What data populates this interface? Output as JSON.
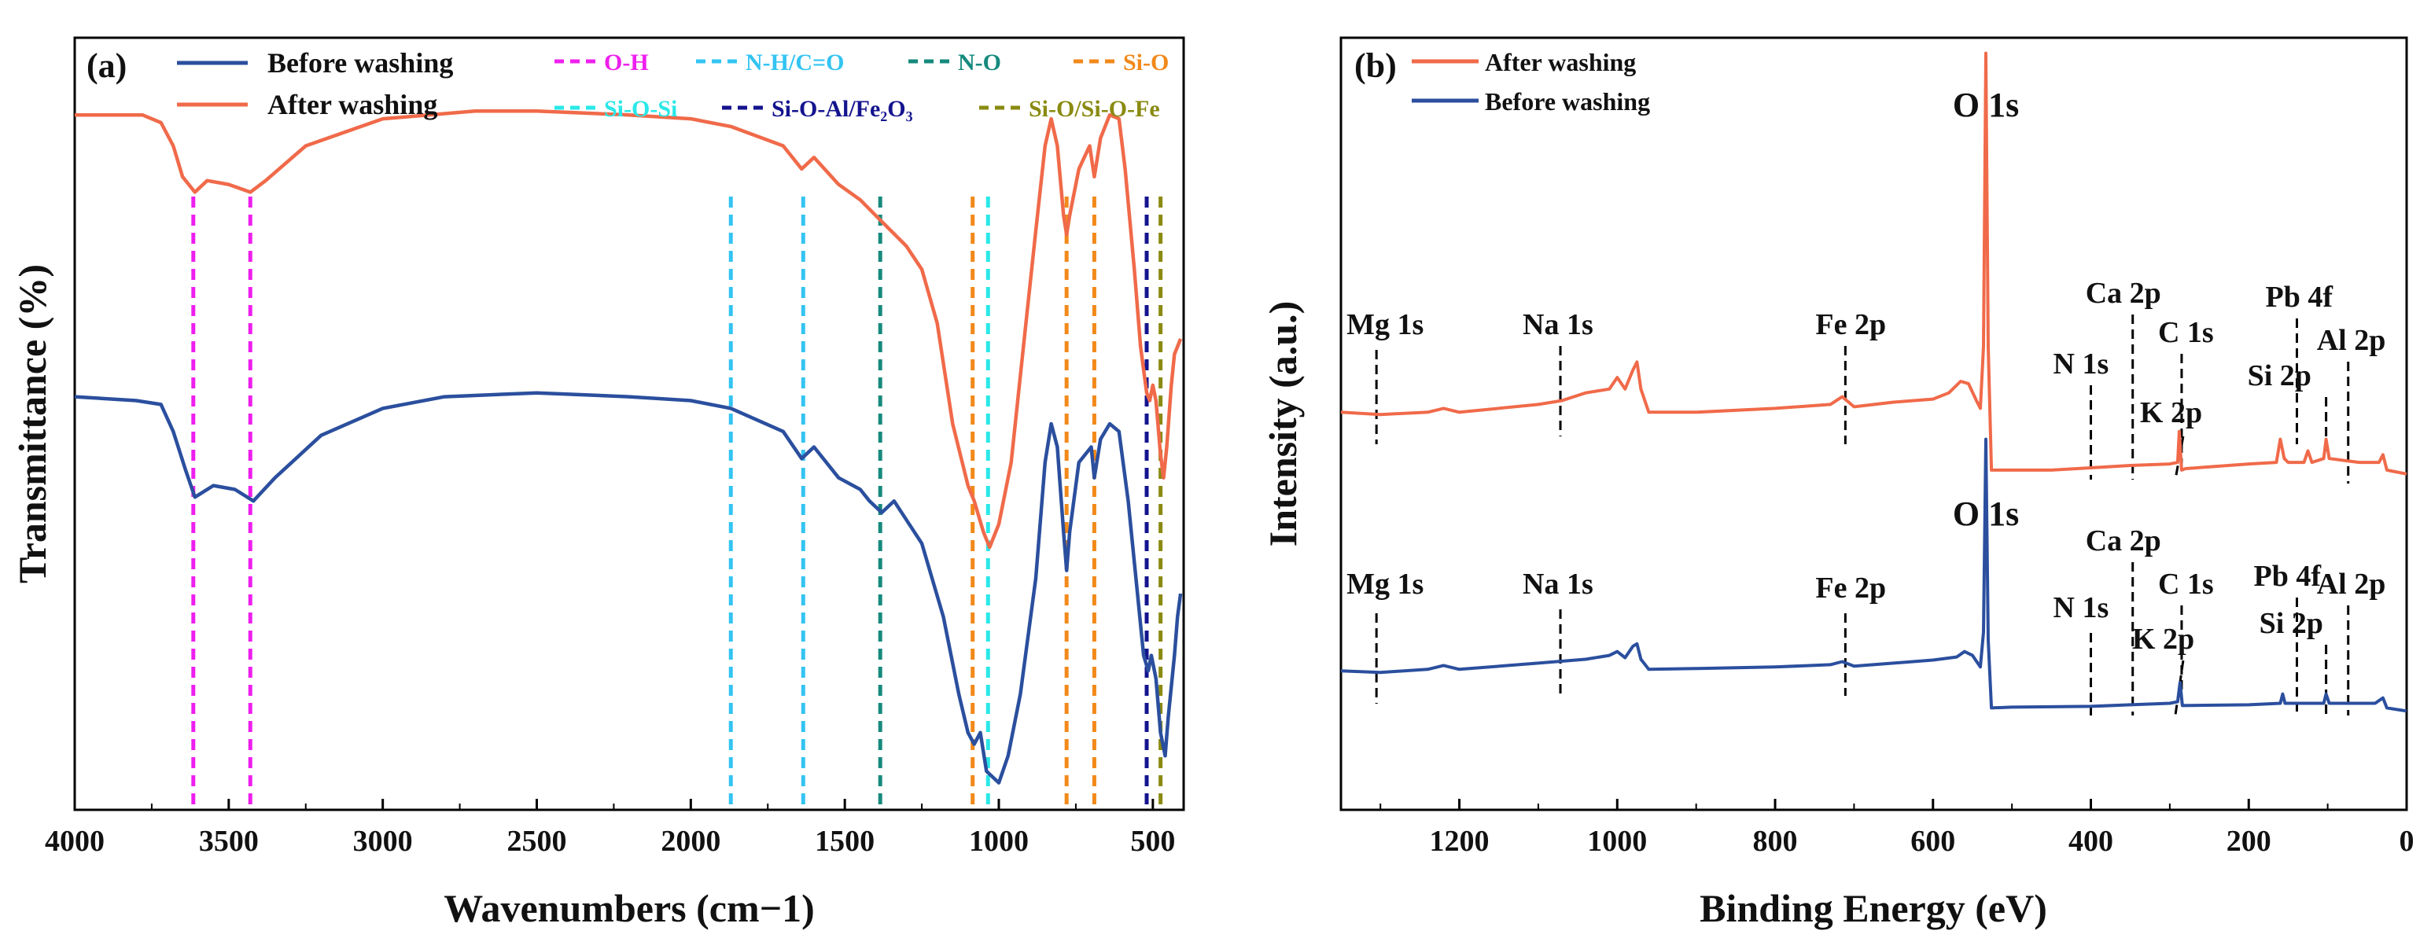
{
  "chart_data": [
    {
      "panel": "(a)",
      "type": "line",
      "xlabel": "Wavenumbers  (cm−1)",
      "ylabel": "Transmittance (%)",
      "xlim": [
        4000,
        400
      ],
      "ylim": [
        0,
        1
      ],
      "x_ticks": [
        "4000",
        "3500",
        "3000",
        "2500",
        "2000",
        "1500",
        "1000",
        "500"
      ],
      "grid": false,
      "legend": "top-left",
      "series": [
        {
          "name": "Before washing",
          "color": "#2b4f9e",
          "points": [
            [
              4000,
              0.535
            ],
            [
              3800,
              0.53
            ],
            [
              3720,
              0.525
            ],
            [
              3680,
              0.49
            ],
            [
              3640,
              0.44
            ],
            [
              3610,
              0.405
            ],
            [
              3550,
              0.42
            ],
            [
              3480,
              0.415
            ],
            [
              3420,
              0.4
            ],
            [
              3350,
              0.43
            ],
            [
              3200,
              0.485
            ],
            [
              3000,
              0.52
            ],
            [
              2800,
              0.535
            ],
            [
              2500,
              0.54
            ],
            [
              2200,
              0.535
            ],
            [
              2000,
              0.53
            ],
            [
              1870,
              0.52
            ],
            [
              1700,
              0.49
            ],
            [
              1640,
              0.455
            ],
            [
              1600,
              0.47
            ],
            [
              1520,
              0.43
            ],
            [
              1450,
              0.415
            ],
            [
              1420,
              0.4
            ],
            [
              1380,
              0.385
            ],
            [
              1340,
              0.4
            ],
            [
              1250,
              0.345
            ],
            [
              1180,
              0.25
            ],
            [
              1130,
              0.15
            ],
            [
              1100,
              0.1
            ],
            [
              1080,
              0.085
            ],
            [
              1060,
              0.1
            ],
            [
              1040,
              0.05
            ],
            [
              1000,
              0.035
            ],
            [
              970,
              0.07
            ],
            [
              930,
              0.15
            ],
            [
              880,
              0.3
            ],
            [
              850,
              0.45
            ],
            [
              830,
              0.5
            ],
            [
              810,
              0.47
            ],
            [
              790,
              0.36
            ],
            [
              780,
              0.31
            ],
            [
              770,
              0.36
            ],
            [
              740,
              0.45
            ],
            [
              700,
              0.47
            ],
            [
              690,
              0.43
            ],
            [
              670,
              0.48
            ],
            [
              640,
              0.5
            ],
            [
              610,
              0.49
            ],
            [
              580,
              0.4
            ],
            [
              550,
              0.28
            ],
            [
              530,
              0.2
            ],
            [
              515,
              0.18
            ],
            [
              505,
              0.2
            ],
            [
              490,
              0.17
            ],
            [
              475,
              0.1
            ],
            [
              460,
              0.07
            ],
            [
              450,
              0.12
            ],
            [
              430,
              0.2
            ],
            [
              420,
              0.25
            ],
            [
              410,
              0.28
            ]
          ]
        },
        {
          "name": "After washing",
          "color": "#f06a4a",
          "points": [
            [
              4000,
              0.9
            ],
            [
              3780,
              0.9
            ],
            [
              3720,
              0.89
            ],
            [
              3680,
              0.86
            ],
            [
              3650,
              0.82
            ],
            [
              3610,
              0.8
            ],
            [
              3570,
              0.815
            ],
            [
              3500,
              0.81
            ],
            [
              3430,
              0.8
            ],
            [
              3380,
              0.815
            ],
            [
              3250,
              0.86
            ],
            [
              3000,
              0.895
            ],
            [
              2700,
              0.905
            ],
            [
              2500,
              0.905
            ],
            [
              2200,
              0.9
            ],
            [
              2000,
              0.895
            ],
            [
              1870,
              0.885
            ],
            [
              1700,
              0.86
            ],
            [
              1640,
              0.83
            ],
            [
              1600,
              0.845
            ],
            [
              1520,
              0.81
            ],
            [
              1450,
              0.79
            ],
            [
              1400,
              0.77
            ],
            [
              1300,
              0.73
            ],
            [
              1250,
              0.7
            ],
            [
              1200,
              0.63
            ],
            [
              1150,
              0.5
            ],
            [
              1100,
              0.42
            ],
            [
              1080,
              0.4
            ],
            [
              1050,
              0.36
            ],
            [
              1030,
              0.34
            ],
            [
              1000,
              0.37
            ],
            [
              960,
              0.45
            ],
            [
              920,
              0.6
            ],
            [
              880,
              0.75
            ],
            [
              850,
              0.86
            ],
            [
              830,
              0.895
            ],
            [
              810,
              0.86
            ],
            [
              790,
              0.77
            ],
            [
              780,
              0.745
            ],
            [
              770,
              0.77
            ],
            [
              740,
              0.83
            ],
            [
              705,
              0.86
            ],
            [
              690,
              0.82
            ],
            [
              670,
              0.87
            ],
            [
              640,
              0.9
            ],
            [
              610,
              0.895
            ],
            [
              590,
              0.83
            ],
            [
              560,
              0.7
            ],
            [
              540,
              0.6
            ],
            [
              520,
              0.54
            ],
            [
              510,
              0.53
            ],
            [
              500,
              0.55
            ],
            [
              490,
              0.53
            ],
            [
              475,
              0.46
            ],
            [
              465,
              0.43
            ],
            [
              455,
              0.47
            ],
            [
              440,
              0.55
            ],
            [
              430,
              0.59
            ],
            [
              420,
              0.6
            ],
            [
              410,
              0.61
            ]
          ]
        }
      ],
      "reference_lines": [
        {
          "label": "O-H",
          "color": "#ee1fee",
          "positions": [
            3615,
            3430
          ]
        },
        {
          "label": "N-H/C=O",
          "color": "#33c4f2",
          "positions": [
            1870,
            1635
          ]
        },
        {
          "label": "N-O",
          "color": "#168a7d",
          "positions": [
            1385
          ]
        },
        {
          "label": "Si-O",
          "color": "#f2891a",
          "positions": [
            1085,
            780,
            690
          ]
        },
        {
          "label": "Si-O-Si",
          "color": "#2ae8e8",
          "positions": [
            1035
          ]
        },
        {
          "label": "Si-O-Al/Fe₂O₃",
          "color": "#14148f",
          "positions": [
            520
          ]
        },
        {
          "label": "Si-O/Si-O-Fe",
          "color": "#8a8a12",
          "positions": [
            475
          ]
        }
      ]
    },
    {
      "panel": "(b)",
      "type": "line",
      "xlabel": "Binding Energy (eV)",
      "ylabel": "Intensity (a.u.)",
      "xlim": [
        1350,
        0
      ],
      "ylim": [
        0,
        1
      ],
      "x_ticks": [
        "1200",
        "1000",
        "800",
        "600",
        "400",
        "200",
        "0"
      ],
      "grid": false,
      "legend": "top-left",
      "series": [
        {
          "name": "After washing",
          "color": "#f06a4a",
          "points": [
            [
              1350,
              0.515
            ],
            [
              1300,
              0.512
            ],
            [
              1240,
              0.515
            ],
            [
              1220,
              0.52
            ],
            [
              1200,
              0.515
            ],
            [
              1100,
              0.525
            ],
            [
              1070,
              0.53
            ],
            [
              1040,
              0.54
            ],
            [
              1010,
              0.545
            ],
            [
              1000,
              0.56
            ],
            [
              990,
              0.545
            ],
            [
              980,
              0.57
            ],
            [
              975,
              0.58
            ],
            [
              970,
              0.545
            ],
            [
              960,
              0.515
            ],
            [
              900,
              0.515
            ],
            [
              800,
              0.52
            ],
            [
              730,
              0.525
            ],
            [
              715,
              0.535
            ],
            [
              700,
              0.522
            ],
            [
              650,
              0.528
            ],
            [
              600,
              0.532
            ],
            [
              580,
              0.54
            ],
            [
              565,
              0.555
            ],
            [
              555,
              0.552
            ],
            [
              545,
              0.53
            ],
            [
              540,
              0.52
            ],
            [
              536,
              0.6
            ],
            [
              533,
              0.98
            ],
            [
              530,
              0.6
            ],
            [
              526,
              0.44
            ],
            [
              520,
              0.44
            ],
            [
              450,
              0.44
            ],
            [
              400,
              0.443
            ],
            [
              350,
              0.446
            ],
            [
              300,
              0.448
            ],
            [
              290,
              0.45
            ],
            [
              288,
              0.49
            ],
            [
              285,
              0.44
            ],
            [
              280,
              0.442
            ],
            [
              200,
              0.448
            ],
            [
              165,
              0.45
            ],
            [
              160,
              0.48
            ],
            [
              155,
              0.455
            ],
            [
              150,
              0.45
            ],
            [
              130,
              0.45
            ],
            [
              125,
              0.465
            ],
            [
              120,
              0.45
            ],
            [
              105,
              0.455
            ],
            [
              102,
              0.48
            ],
            [
              98,
              0.455
            ],
            [
              60,
              0.45
            ],
            [
              35,
              0.45
            ],
            [
              30,
              0.46
            ],
            [
              25,
              0.44
            ],
            [
              0,
              0.435
            ]
          ]
        },
        {
          "name": "Before washing",
          "color": "#2b4f9e",
          "points": [
            [
              1350,
              0.18
            ],
            [
              1300,
              0.178
            ],
            [
              1240,
              0.182
            ],
            [
              1220,
              0.187
            ],
            [
              1200,
              0.182
            ],
            [
              1100,
              0.19
            ],
            [
              1040,
              0.195
            ],
            [
              1010,
              0.2
            ],
            [
              1000,
              0.205
            ],
            [
              990,
              0.197
            ],
            [
              980,
              0.212
            ],
            [
              975,
              0.215
            ],
            [
              970,
              0.195
            ],
            [
              960,
              0.182
            ],
            [
              900,
              0.183
            ],
            [
              800,
              0.185
            ],
            [
              730,
              0.188
            ],
            [
              715,
              0.192
            ],
            [
              700,
              0.186
            ],
            [
              650,
              0.19
            ],
            [
              600,
              0.194
            ],
            [
              570,
              0.198
            ],
            [
              560,
              0.205
            ],
            [
              550,
              0.2
            ],
            [
              540,
              0.185
            ],
            [
              536,
              0.23
            ],
            [
              533,
              0.48
            ],
            [
              530,
              0.22
            ],
            [
              526,
              0.132
            ],
            [
              500,
              0.133
            ],
            [
              400,
              0.134
            ],
            [
              350,
              0.136
            ],
            [
              300,
              0.138
            ],
            [
              290,
              0.14
            ],
            [
              287,
              0.165
            ],
            [
              284,
              0.135
            ],
            [
              200,
              0.136
            ],
            [
              160,
              0.138
            ],
            [
              157,
              0.15
            ],
            [
              154,
              0.138
            ],
            [
              130,
              0.138
            ],
            [
              105,
              0.138
            ],
            [
              102,
              0.15
            ],
            [
              98,
              0.138
            ],
            [
              40,
              0.138
            ],
            [
              30,
              0.145
            ],
            [
              25,
              0.132
            ],
            [
              0,
              0.128
            ]
          ]
        }
      ],
      "peak_labels": [
        {
          "label": "Mg 1s",
          "x": 1305
        },
        {
          "label": "Na 1s",
          "x": 1072
        },
        {
          "label": "Fe 2p",
          "x": 711
        },
        {
          "label": "N 1s",
          "x": 400
        },
        {
          "label": "Ca 2p",
          "x": 347
        },
        {
          "label": "K 2p",
          "x": 293
        },
        {
          "label": "C 1s",
          "x": 285
        },
        {
          "label": "Pb 4f",
          "x": 139
        },
        {
          "label": "Si 2p",
          "x": 102
        },
        {
          "label": "Al 2p",
          "x": 74
        }
      ],
      "main_peak_label": "O 1s"
    }
  ]
}
